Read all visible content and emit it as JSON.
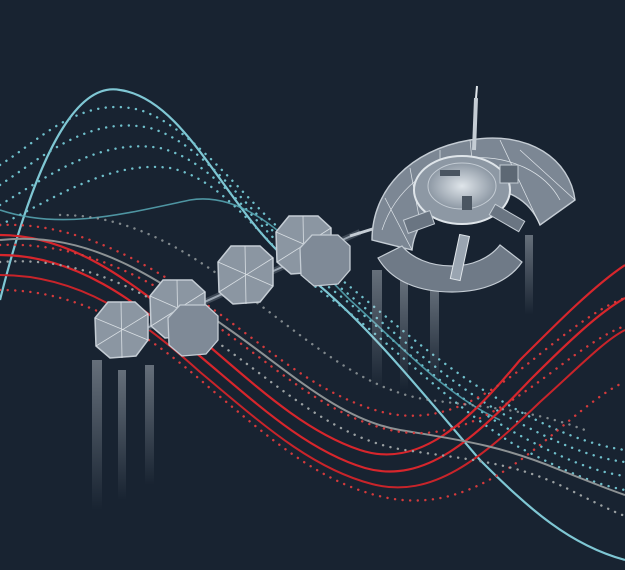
{
  "palette": {
    "background": "#182331",
    "teal_solid": "#7fc7d4",
    "teal_dots": "#6fbfcb",
    "red_solid": "#d7262c",
    "red_dots": "#d33a3c",
    "grey_line": "#8d9294",
    "grey_dots": "#9aa0a2",
    "hardware_fill": "#7c8794",
    "hardware_light": "#c4ccd4",
    "hardware_dark": "#3f4a57"
  }
}
